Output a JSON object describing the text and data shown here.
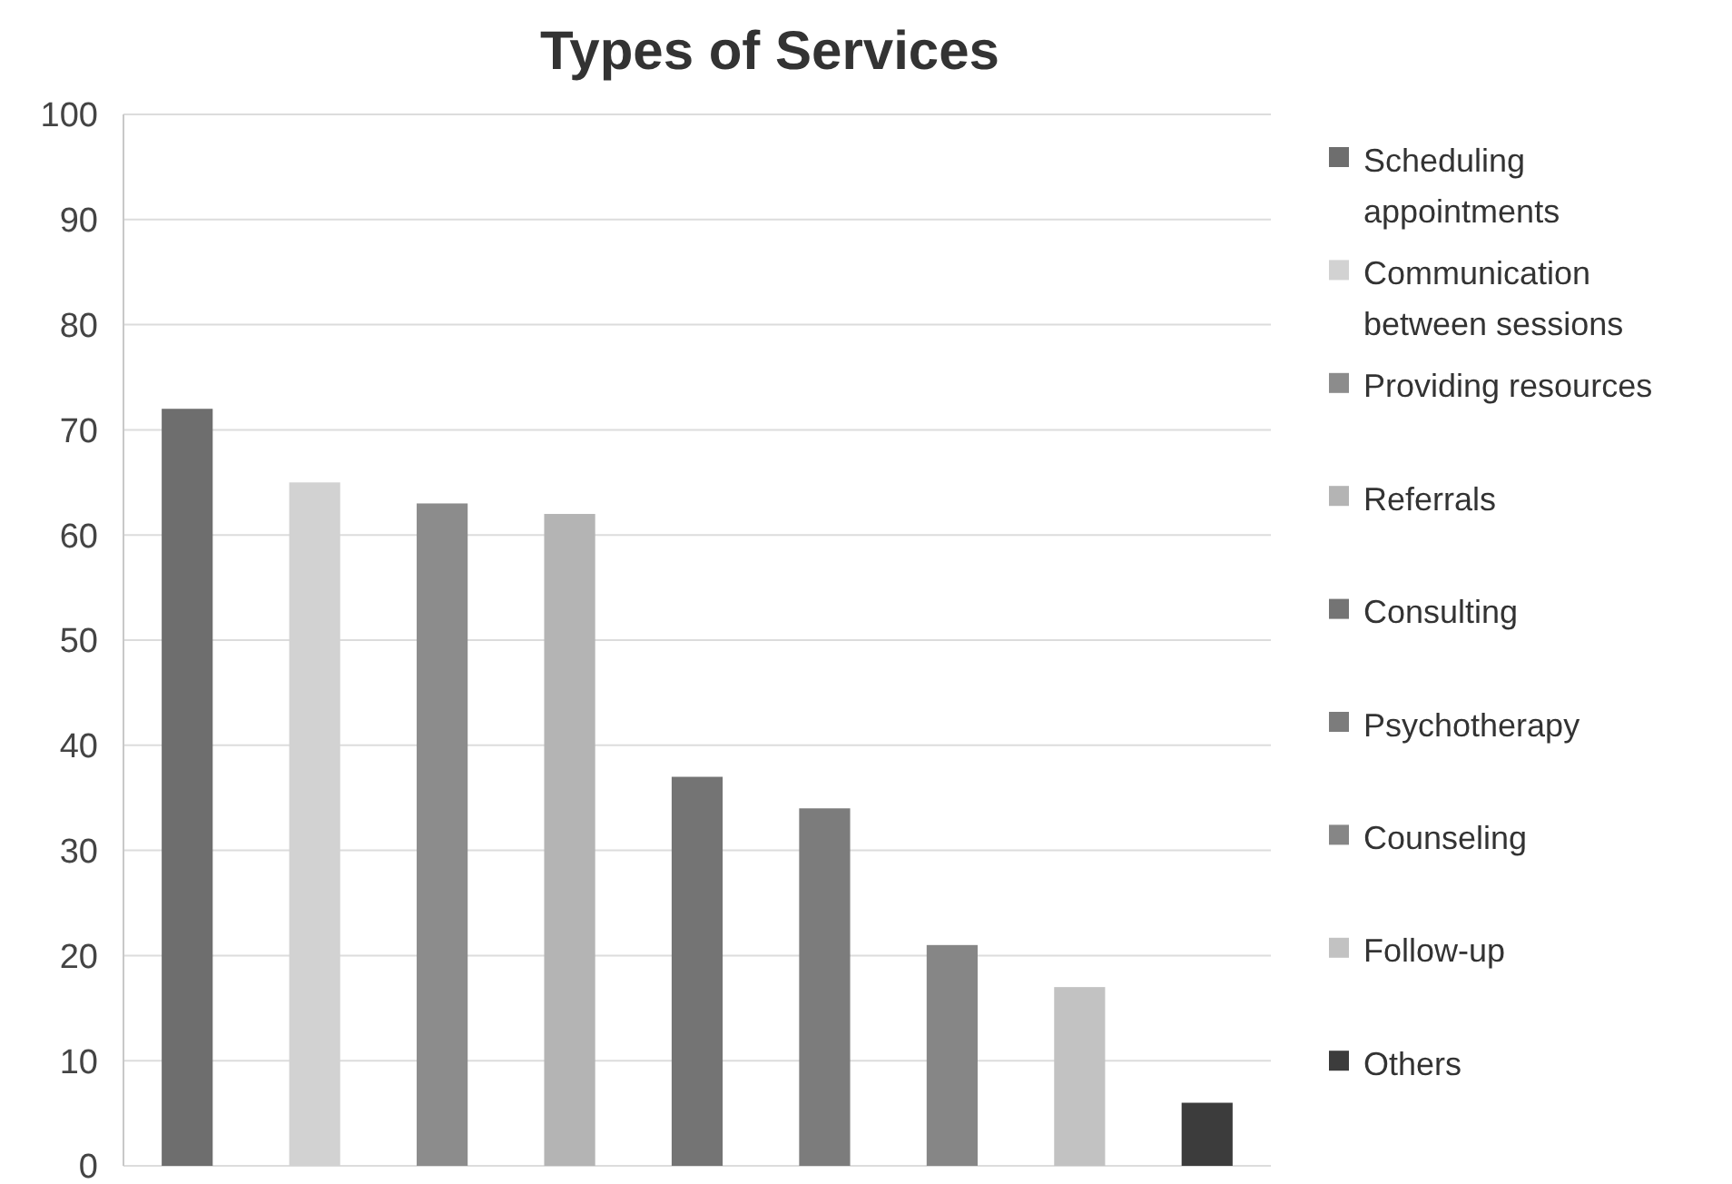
{
  "chart_data": {
    "type": "bar",
    "title": "Types of Services",
    "categories": [
      null
    ],
    "series": [
      {
        "name": "Scheduling appointments",
        "color": "#6e6e6e",
        "values": [
          72
        ]
      },
      {
        "name": "Communication between sessions",
        "color": "#d2d2d2",
        "values": [
          65
        ]
      },
      {
        "name": "Providing resources",
        "color": "#8c8c8c",
        "values": [
          63
        ]
      },
      {
        "name": "Referrals",
        "color": "#b4b4b4",
        "values": [
          62
        ]
      },
      {
        "name": "Consulting",
        "color": "#747474",
        "values": [
          37
        ]
      },
      {
        "name": "Psychotherapy",
        "color": "#7c7c7c",
        "values": [
          34
        ]
      },
      {
        "name": "Counseling",
        "color": "#868686",
        "values": [
          21
        ]
      },
      {
        "name": "Follow-up",
        "color": "#c2c2c2",
        "values": [
          17
        ]
      },
      {
        "name": "Others",
        "color": "#3c3c3c",
        "values": [
          6
        ]
      }
    ],
    "ylim": [
      0,
      100
    ],
    "yticks": [
      0,
      10,
      20,
      30,
      40,
      50,
      60,
      70,
      80,
      90,
      100
    ],
    "grid": "y",
    "legend": "right"
  }
}
